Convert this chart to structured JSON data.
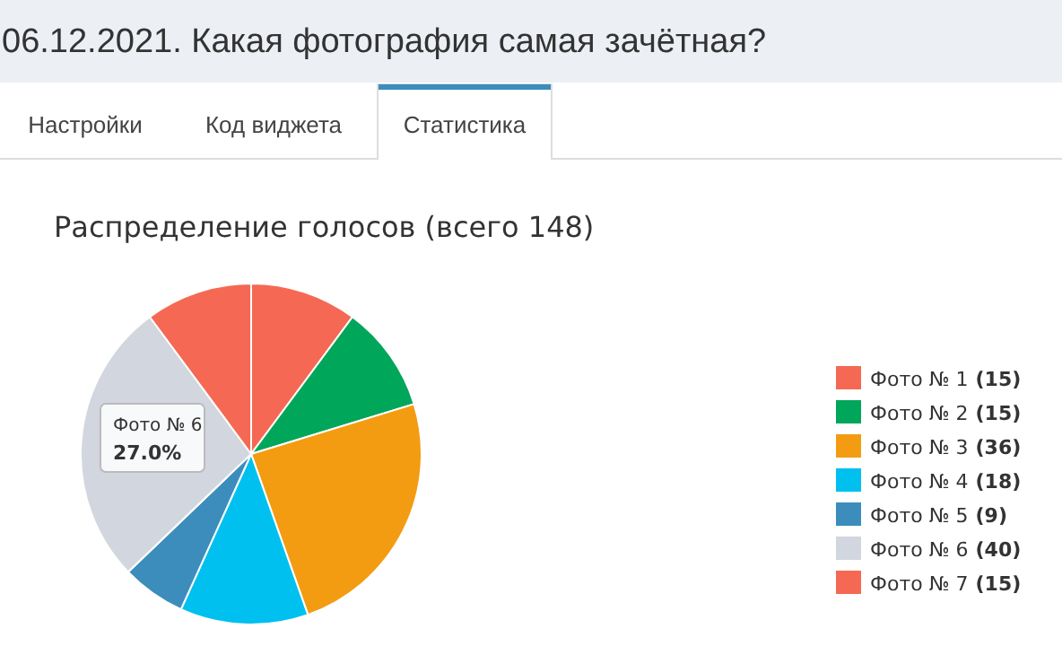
{
  "chart_data": {
    "type": "pie",
    "title": "06.12.2021. Какая фотография самая зачётная?",
    "subtitle": "Распределение голосов (всего 148)",
    "categories": [
      "Фото № 1",
      "Фото № 2",
      "Фото № 3",
      "Фото № 4",
      "Фото № 5",
      "Фото № 6",
      "Фото № 7"
    ],
    "values": [
      15,
      15,
      36,
      18,
      9,
      40,
      15
    ],
    "colors": [
      "#f56954",
      "#00a65a",
      "#f39c12",
      "#00c0ef",
      "#3c8dbc",
      "#d2d6de",
      "#f56954"
    ],
    "value_labels": [
      "(15)",
      "(15)",
      "(36)",
      "(18)",
      "(9)",
      "(40)",
      "(15)"
    ],
    "legend": "right",
    "annotations": [
      "Настройки",
      "Код виджета",
      "Статистика",
      "Фото № 6",
      "27.0%"
    ]
  }
}
